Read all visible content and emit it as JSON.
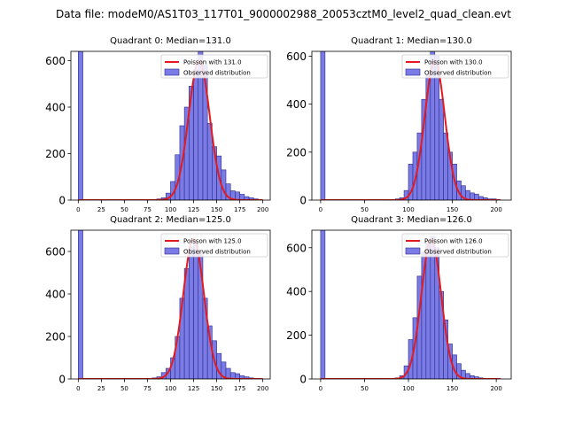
{
  "figure": {
    "suptitle": "Data file: modeM0/AS1T03_117T01_9000002988_20053cztM0_level2_quad_clean.evt"
  },
  "colors": {
    "bar_fill": "#7b7be6",
    "bar_edge": "#2a2a8a",
    "poisson_line": "#e41a1c",
    "axis": "#000000"
  },
  "chart_data": [
    {
      "type": "bar",
      "title": "Quadrant 0: Median=131.0",
      "median": 131.0,
      "xlim": [
        -8,
        208
      ],
      "ylim": [
        0,
        640
      ],
      "xticks": [
        0,
        25,
        50,
        75,
        100,
        125,
        150,
        175,
        200
      ],
      "yticks": [
        0,
        200,
        400,
        600
      ],
      "bin_width": 5,
      "bins": [
        {
          "x": 0,
          "y": 640
        },
        {
          "x": 85,
          "y": 5
        },
        {
          "x": 90,
          "y": 10
        },
        {
          "x": 95,
          "y": 30
        },
        {
          "x": 100,
          "y": 80
        },
        {
          "x": 105,
          "y": 195
        },
        {
          "x": 110,
          "y": 320
        },
        {
          "x": 115,
          "y": 400
        },
        {
          "x": 120,
          "y": 490
        },
        {
          "x": 125,
          "y": 560
        },
        {
          "x": 130,
          "y": 640
        },
        {
          "x": 135,
          "y": 580
        },
        {
          "x": 140,
          "y": 330
        },
        {
          "x": 145,
          "y": 230
        },
        {
          "x": 150,
          "y": 190
        },
        {
          "x": 155,
          "y": 130
        },
        {
          "x": 160,
          "y": 70
        },
        {
          "x": 165,
          "y": 40
        },
        {
          "x": 170,
          "y": 35
        },
        {
          "x": 175,
          "y": 25
        },
        {
          "x": 180,
          "y": 15
        },
        {
          "x": 185,
          "y": 10
        },
        {
          "x": 190,
          "y": 5
        }
      ],
      "curve": {
        "label": "Poisson with 131.0",
        "lambda": 131.0,
        "peak": 600,
        "x_range": [
          0,
          200
        ]
      },
      "legend": [
        {
          "label": "Poisson with 131.0",
          "kind": "line"
        },
        {
          "label": "Observed distribution",
          "kind": "patch"
        }
      ],
      "legend_position": "upper right"
    },
    {
      "type": "bar",
      "title": "Quadrant 1: Median=130.0",
      "median": 130.0,
      "xlim": [
        -10,
        217
      ],
      "ylim": [
        0,
        620
      ],
      "xticks": [
        0,
        50,
        100,
        150,
        200
      ],
      "yticks": [
        0,
        200,
        400,
        600
      ],
      "bin_width": 5,
      "bins": [
        {
          "x": 0,
          "y": 620
        },
        {
          "x": 85,
          "y": 5
        },
        {
          "x": 90,
          "y": 10
        },
        {
          "x": 95,
          "y": 40
        },
        {
          "x": 100,
          "y": 150
        },
        {
          "x": 105,
          "y": 200
        },
        {
          "x": 110,
          "y": 280
        },
        {
          "x": 115,
          "y": 420
        },
        {
          "x": 120,
          "y": 520
        },
        {
          "x": 125,
          "y": 620
        },
        {
          "x": 130,
          "y": 600
        },
        {
          "x": 135,
          "y": 420
        },
        {
          "x": 140,
          "y": 280
        },
        {
          "x": 145,
          "y": 200
        },
        {
          "x": 150,
          "y": 150
        },
        {
          "x": 155,
          "y": 80
        },
        {
          "x": 160,
          "y": 60
        },
        {
          "x": 165,
          "y": 40
        },
        {
          "x": 170,
          "y": 30
        },
        {
          "x": 175,
          "y": 25
        },
        {
          "x": 180,
          "y": 15
        },
        {
          "x": 185,
          "y": 10
        },
        {
          "x": 190,
          "y": 5
        },
        {
          "x": 195,
          "y": 5
        }
      ],
      "curve": {
        "label": "Poisson with 130.0",
        "lambda": 130.0,
        "peak": 580,
        "x_range": [
          0,
          205
        ]
      },
      "legend": [
        {
          "label": "Poisson with 130.0",
          "kind": "line"
        },
        {
          "label": "Observed distribution",
          "kind": "patch"
        }
      ],
      "legend_position": "upper right"
    },
    {
      "type": "bar",
      "title": "Quadrant 2: Median=125.0",
      "median": 125.0,
      "xlim": [
        -8,
        208
      ],
      "ylim": [
        0,
        700
      ],
      "xticks": [
        0,
        25,
        50,
        75,
        100,
        125,
        150,
        175,
        200
      ],
      "yticks": [
        0,
        200,
        400,
        600
      ],
      "bin_width": 5,
      "bins": [
        {
          "x": 0,
          "y": 700
        },
        {
          "x": 80,
          "y": 5
        },
        {
          "x": 85,
          "y": 10
        },
        {
          "x": 90,
          "y": 30
        },
        {
          "x": 95,
          "y": 50
        },
        {
          "x": 100,
          "y": 100
        },
        {
          "x": 105,
          "y": 200
        },
        {
          "x": 110,
          "y": 380
        },
        {
          "x": 115,
          "y": 520
        },
        {
          "x": 120,
          "y": 620
        },
        {
          "x": 125,
          "y": 640
        },
        {
          "x": 130,
          "y": 600
        },
        {
          "x": 135,
          "y": 380
        },
        {
          "x": 140,
          "y": 250
        },
        {
          "x": 145,
          "y": 180
        },
        {
          "x": 150,
          "y": 120
        },
        {
          "x": 155,
          "y": 80
        },
        {
          "x": 160,
          "y": 50
        },
        {
          "x": 165,
          "y": 30
        },
        {
          "x": 170,
          "y": 25
        },
        {
          "x": 175,
          "y": 15
        },
        {
          "x": 180,
          "y": 10
        },
        {
          "x": 185,
          "y": 5
        }
      ],
      "curve": {
        "label": "Poisson with 125.0",
        "lambda": 125.0,
        "peak": 660,
        "x_range": [
          0,
          200
        ]
      },
      "legend": [
        {
          "label": "Poisson with 125.0",
          "kind": "line"
        },
        {
          "label": "Observed distribution",
          "kind": "patch"
        }
      ],
      "legend_position": "upper right"
    },
    {
      "type": "bar",
      "title": "Quadrant 3: Median=126.0",
      "median": 126.0,
      "xlim": [
        -10,
        217
      ],
      "ylim": [
        0,
        680
      ],
      "xticks": [
        0,
        50,
        100,
        150,
        200
      ],
      "yticks": [
        0,
        200,
        400,
        600
      ],
      "bin_width": 5,
      "bins": [
        {
          "x": 0,
          "y": 680
        },
        {
          "x": 85,
          "y": 5
        },
        {
          "x": 90,
          "y": 15
        },
        {
          "x": 95,
          "y": 60
        },
        {
          "x": 100,
          "y": 180
        },
        {
          "x": 105,
          "y": 280
        },
        {
          "x": 110,
          "y": 470
        },
        {
          "x": 115,
          "y": 580
        },
        {
          "x": 120,
          "y": 620
        },
        {
          "x": 125,
          "y": 650
        },
        {
          "x": 130,
          "y": 600
        },
        {
          "x": 135,
          "y": 400
        },
        {
          "x": 140,
          "y": 270
        },
        {
          "x": 145,
          "y": 160
        },
        {
          "x": 150,
          "y": 110
        },
        {
          "x": 155,
          "y": 70
        },
        {
          "x": 160,
          "y": 40
        },
        {
          "x": 165,
          "y": 25
        },
        {
          "x": 170,
          "y": 15
        },
        {
          "x": 175,
          "y": 10
        },
        {
          "x": 180,
          "y": 5
        }
      ],
      "curve": {
        "label": "Poisson with 126.0",
        "lambda": 126.0,
        "peak": 640,
        "x_range": [
          0,
          205
        ]
      },
      "legend": [
        {
          "label": "Poisson with 126.0",
          "kind": "line"
        },
        {
          "label": "Observed distribution",
          "kind": "patch"
        }
      ],
      "legend_position": "upper right"
    }
  ]
}
